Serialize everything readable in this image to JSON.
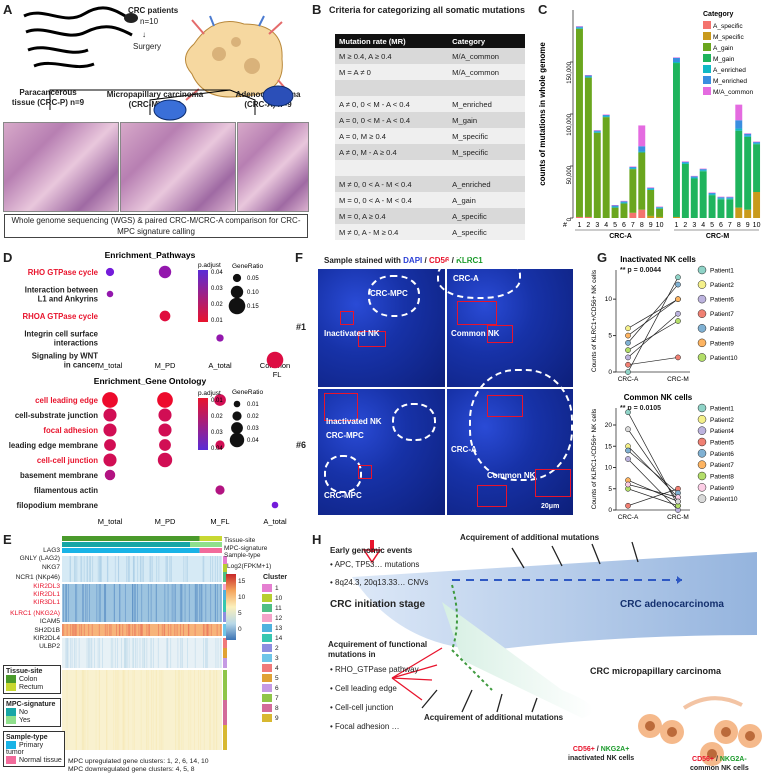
{
  "panels": {
    "A": "A",
    "B": "B",
    "C": "C",
    "D": "D",
    "E": "E",
    "F": "F",
    "G": "G",
    "H": "H"
  },
  "panelA": {
    "patients": "CRC patients",
    "n10": "n=10",
    "surgery": "Surgery",
    "crc_p": "Paracancerous tissue (CRC-P) n=9",
    "crc_m": "Micropapillary carcinoma (CRC-M) n=10",
    "crc_a": "Adenocarcinoma (CRC-A) n=9",
    "wgs": "Whole genome sequencing (WGS) & paired CRC-M/CRC-A comparison for CRC-MPC signature calling"
  },
  "panelB": {
    "title": "Criteria for categorizing all somatic mutations",
    "headers": [
      "Mutation rate (MR)",
      "Category"
    ],
    "rows": [
      [
        "M ≥ 0.4, A ≥ 0.4",
        "M/A_common"
      ],
      [
        "M = A ≠ 0",
        "M/A_common"
      ],
      [
        "",
        ""
      ],
      [
        "A ≠ 0, 0 < M - A < 0.4",
        "M_enriched"
      ],
      [
        "A = 0, 0 < M - A < 0.4",
        "M_gain"
      ],
      [
        "A = 0, M ≥ 0.4",
        "M_specific"
      ],
      [
        "A ≠ 0, M - A ≥ 0.4",
        "M_specific"
      ],
      [
        "",
        ""
      ],
      [
        "M ≠ 0, 0 < A - M < 0.4",
        "A_enriched"
      ],
      [
        "M = 0, 0 < A - M < 0.4",
        "A_gain"
      ],
      [
        "M = 0, A ≥ 0.4",
        "A_specific"
      ],
      [
        "M ≠ 0, A - M ≥ 0.4",
        "A_specific"
      ]
    ]
  },
  "chart_data": [
    {
      "type": "bar",
      "title": "",
      "ylabel": "counts of mutations in whole genome",
      "xlabel_groups": [
        "CRC-A",
        "CRC-M"
      ],
      "x_tick_prefix": "#",
      "categories": [
        "1",
        "2",
        "3",
        "4",
        "5",
        "6",
        "7",
        "8",
        "9",
        "10",
        "1",
        "2",
        "3",
        "4",
        "5",
        "6",
        "7",
        "8",
        "9",
        "10"
      ],
      "ylim": [
        0,
        200000
      ],
      "yticks": [
        "0",
        "50,000",
        "100,000",
        "150,000"
      ],
      "legend_title": "Category",
      "legend_position": "top-right",
      "colors": {
        "A_specific": "#f4736e",
        "M_specific": "#c99a1c",
        "A_gain": "#6aa61e",
        "M_gain": "#1fb45d",
        "A_enriched": "#11b9c5",
        "M_enriched": "#3a8ee0",
        "M/A_common": "#e46be0"
      },
      "series": [
        {
          "name": "A_specific",
          "values": [
            1000,
            1000,
            0,
            0,
            0,
            0,
            5000,
            8000,
            0,
            0,
            0,
            0,
            0,
            0,
            0,
            0,
            0,
            0,
            0,
            0
          ]
        },
        {
          "name": "M_specific",
          "values": [
            0,
            0,
            0,
            0,
            0,
            0,
            0,
            0,
            2000,
            1000,
            1000,
            0,
            0,
            0,
            0,
            0,
            0,
            10000,
            8000,
            25000
          ]
        },
        {
          "name": "A_gain",
          "values": [
            181000,
            134000,
            82000,
            97000,
            10000,
            14000,
            42000,
            55000,
            25000,
            8000,
            0,
            0,
            0,
            0,
            0,
            0,
            0,
            0,
            0,
            0
          ]
        },
        {
          "name": "M_gain",
          "values": [
            0,
            0,
            0,
            0,
            0,
            0,
            0,
            0,
            0,
            0,
            148000,
            52000,
            38000,
            45000,
            22000,
            18000,
            18000,
            74000,
            70000,
            46000
          ]
        },
        {
          "name": "A_enriched",
          "values": [
            1000,
            1000,
            1000,
            1000,
            1000,
            1000,
            1000,
            1000,
            1000,
            1000,
            1000,
            1000,
            1000,
            1000,
            1000,
            1000,
            1000,
            2000,
            1000,
            1000
          ]
        },
        {
          "name": "M_enriched",
          "values": [
            1000,
            1000,
            1000,
            1000,
            1000,
            1000,
            1000,
            5000,
            1000,
            500,
            4000,
            1000,
            1000,
            1000,
            1000,
            1000,
            1000,
            8000,
            2000,
            1000
          ]
        },
        {
          "name": "M/A_common",
          "values": [
            500,
            500,
            500,
            500,
            500,
            500,
            500,
            20000,
            500,
            500,
            500,
            500,
            500,
            500,
            500,
            500,
            500,
            15000,
            500,
            500
          ]
        }
      ]
    },
    {
      "type": "scatter",
      "title": "Enrichment_Pathways",
      "x": [
        "M_total",
        "M_PD",
        "A_total",
        "Common_FL"
      ],
      "categories": [
        "RHO GTPase cycle",
        "Interaction between L1 and Ankyrins",
        "RHOA GTPase cycle",
        "Integrin cell surface interactions",
        "Signaling by WNT in cancer"
      ],
      "legend_title": "p.adjust",
      "legend_ticks": [
        "0.04",
        "0.03",
        "0.02",
        "0.01"
      ],
      "size_title": "GeneRatio",
      "size_ticks": [
        "0.05",
        "0.10",
        "0.15"
      ],
      "points": [
        {
          "x": "M_total",
          "y": "RHO GTPase cycle",
          "padj": 0.04,
          "ratio": 0.05
        },
        {
          "x": "M_PD",
          "y": "RHO GTPase cycle",
          "padj": 0.03,
          "ratio": 0.1
        },
        {
          "x": "M_total",
          "y": "Interaction between L1 and Ankyrins",
          "padj": 0.03,
          "ratio": 0.03
        },
        {
          "x": "M_PD",
          "y": "RHOA GTPase cycle",
          "padj": 0.005,
          "ratio": 0.08
        },
        {
          "x": "A_total",
          "y": "Integrin cell surface interactions",
          "padj": 0.03,
          "ratio": 0.04
        },
        {
          "x": "Common_FL",
          "y": "Signaling by WNT in cancer",
          "padj": 0.006,
          "ratio": 0.15
        }
      ]
    },
    {
      "type": "scatter",
      "title": "Enrichment_Gene Ontology",
      "x": [
        "M_total",
        "M_PD",
        "M_FL",
        "A_total"
      ],
      "categories": [
        "cell leading edge",
        "cell-substrate junction",
        "focal adhesion",
        "leading edge membrane",
        "cell-cell junction",
        "basement membrane",
        "filamentous actin",
        "filopodium membrane"
      ],
      "legend_title": "p.adjust",
      "legend_ticks": [
        "0.01",
        "0.02",
        "0.03",
        "0.04"
      ],
      "size_title": "GeneRatio",
      "size_ticks": [
        "0.01",
        "0.02",
        "0.03",
        "0.04"
      ],
      "points": [
        {
          "x": "M_total",
          "y": "cell leading edge",
          "padj": 0.001,
          "ratio": 0.045
        },
        {
          "x": "M_PD",
          "y": "cell leading edge",
          "padj": 0.001,
          "ratio": 0.045
        },
        {
          "x": "M_FL",
          "y": "cell leading edge",
          "padj": 0.01,
          "ratio": 0.03
        },
        {
          "x": "M_total",
          "y": "cell-substrate junction",
          "padj": 0.01,
          "ratio": 0.035
        },
        {
          "x": "M_PD",
          "y": "cell-substrate junction",
          "padj": 0.01,
          "ratio": 0.035
        },
        {
          "x": "M_total",
          "y": "focal adhesion",
          "padj": 0.01,
          "ratio": 0.035
        },
        {
          "x": "M_PD",
          "y": "focal adhesion",
          "padj": 0.01,
          "ratio": 0.035
        },
        {
          "x": "M_total",
          "y": "leading edge membrane",
          "padj": 0.01,
          "ratio": 0.03
        },
        {
          "x": "M_PD",
          "y": "leading edge membrane",
          "padj": 0.01,
          "ratio": 0.03
        },
        {
          "x": "M_FL",
          "y": "leading edge membrane",
          "padj": 0.01,
          "ratio": 0.02
        },
        {
          "x": "M_total",
          "y": "cell-cell junction",
          "padj": 0.01,
          "ratio": 0.035
        },
        {
          "x": "M_PD",
          "y": "cell-cell junction",
          "padj": 0.01,
          "ratio": 0.04
        },
        {
          "x": "M_total",
          "y": "basement membrane",
          "padj": 0.02,
          "ratio": 0.025
        },
        {
          "x": "M_FL",
          "y": "filamentous actin",
          "padj": 0.02,
          "ratio": 0.02
        },
        {
          "x": "A_total",
          "y": "filopodium membrane",
          "padj": 0.04,
          "ratio": 0.01
        }
      ]
    },
    {
      "type": "line",
      "title": "Inactivated NK cells",
      "annotation": "** p = 0.0044",
      "ylabel": "Counts of KLRC1+/CD56+ NK cells",
      "x": [
        "CRC-A",
        "CRC-M"
      ],
      "yticks": [
        "0",
        "5",
        "10"
      ],
      "ylim": [
        0,
        14
      ],
      "series": [
        {
          "name": "Patient1",
          "color": "#8fd3c7",
          "values": [
            0,
            13
          ]
        },
        {
          "name": "Patient2",
          "color": "#f4f08a",
          "values": [
            6,
            10
          ]
        },
        {
          "name": "Patient6",
          "color": "#bcb3de",
          "values": [
            2,
            8
          ]
        },
        {
          "name": "Patient7",
          "color": "#f08073",
          "values": [
            1,
            2
          ]
        },
        {
          "name": "Patient8",
          "color": "#80b1d3",
          "values": [
            4,
            12
          ]
        },
        {
          "name": "Patient9",
          "color": "#fdb462",
          "values": [
            5,
            10
          ]
        },
        {
          "name": "Patient10",
          "color": "#b3de69",
          "values": [
            3,
            7
          ]
        }
      ]
    },
    {
      "type": "line",
      "title": "Common NK cells",
      "annotation": "** p = 0.0105",
      "ylabel": "Counts of KLRC1-/CD56+ NK cells",
      "x": [
        "CRC-A",
        "CRC-M"
      ],
      "yticks": [
        "0",
        "5",
        "10",
        "15",
        "20"
      ],
      "ylim": [
        0,
        24
      ],
      "series": [
        {
          "name": "Patient1",
          "color": "#8fd3c7",
          "values": [
            23,
            1
          ]
        },
        {
          "name": "Patient2",
          "color": "#f4f08a",
          "values": [
            15,
            3
          ]
        },
        {
          "name": "Patient4",
          "color": "#bcb3de",
          "values": [
            12,
            0
          ]
        },
        {
          "name": "Patient5",
          "color": "#f08073",
          "values": [
            1,
            5
          ]
        },
        {
          "name": "Patient6",
          "color": "#80b1d3",
          "values": [
            14,
            4
          ]
        },
        {
          "name": "Patient7",
          "color": "#fdb462",
          "values": [
            7,
            2
          ]
        },
        {
          "name": "Patient8",
          "color": "#b3de69",
          "values": [
            5,
            1
          ]
        },
        {
          "name": "Patient9",
          "color": "#fccde5",
          "values": [
            6,
            3
          ]
        },
        {
          "name": "Patient10",
          "color": "#d9d9d9",
          "values": [
            19,
            2
          ]
        }
      ]
    }
  ],
  "panelD": {
    "axis_x_pathways": [
      "M_total",
      "M_PD",
      "A_total",
      "Common_FL"
    ],
    "axis_x_go": [
      "M_total",
      "M_PD",
      "M_FL",
      "A_total"
    ]
  },
  "panelE": {
    "genes": [
      "LAG3",
      "GNLY (LAG2)",
      "NKG7",
      "NCR1 (NKp46)",
      "KIR2DL3",
      "KIR2DL1",
      "KIR3DL1",
      "KLRC1 (NKG2A)",
      "ICAM5",
      "SH2D1B",
      "KIR2DL4",
      "ULBP2"
    ],
    "red_genes": [
      "KIR2DL3",
      "KIR2DL1",
      "KIR3DL1",
      "KLRC1 (NKG2A)"
    ],
    "top_labels": [
      "Tissue-site",
      "MPC-signature",
      "Sample-type"
    ],
    "scale_title": "Log2(FPKM+1)",
    "scale_ticks": [
      "15",
      "10",
      "5",
      "0"
    ],
    "cluster_title": "Cluster",
    "clusters": [
      {
        "id": "1",
        "color": "#e57fd1"
      },
      {
        "id": "10",
        "color": "#b7ce2f"
      },
      {
        "id": "11",
        "color": "#4fbf85"
      },
      {
        "id": "12",
        "color": "#f4a3c9"
      },
      {
        "id": "13",
        "color": "#4fb2de"
      },
      {
        "id": "14",
        "color": "#37c7b0"
      },
      {
        "id": "2",
        "color": "#8d8ee0"
      },
      {
        "id": "3",
        "color": "#6ec5e8"
      },
      {
        "id": "4",
        "color": "#f07a7a"
      },
      {
        "id": "5",
        "color": "#e0a234"
      },
      {
        "id": "6",
        "color": "#c59ae4"
      },
      {
        "id": "7",
        "color": "#8fc548"
      },
      {
        "id": "8",
        "color": "#d36b9a"
      },
      {
        "id": "9",
        "color": "#d8b830"
      }
    ],
    "legend": {
      "tissue_title": "Tissue-site",
      "tissue_items": [
        "Colon",
        "Rectum"
      ],
      "tissue_colors": [
        "#4a9a2b",
        "#c8d832"
      ],
      "mpc_title": "MPC-signature",
      "mpc_items": [
        "No",
        "Yes"
      ],
      "mpc_colors": [
        "#17a6a6",
        "#8fe08c"
      ],
      "sample_title": "Sample-type",
      "sample_items": [
        "Primary tumor",
        "Normal tissue"
      ],
      "sample_colors": [
        "#19b3e6",
        "#f26b9b"
      ]
    },
    "foot1": "MPC upregulated gene clusters: 1, 2, 6, 14, 10",
    "foot2": "MPC downregulated gene clusters: 4, 5, 8"
  },
  "panelF": {
    "title_prefix": "Sample stained with",
    "dapi": "DAPI",
    "sep": " / ",
    "cd56": "CD56",
    "klrc1": "KLRC1",
    "row1": "#1",
    "row6": "#6",
    "crc_mpc": "CRC-MPC",
    "crc_a": "CRC-A",
    "inact": "Inactivated NK",
    "common": "Common NK",
    "scale": "20μm"
  },
  "panelG": {
    "top_title": "Inactivated NK cells",
    "bottom_title": "Common NK cells"
  },
  "panelH": {
    "early": "Early genomic events",
    "b1": "APC, TP53… mutations",
    "b2": "8q24.3, 20q13.33… CNVs",
    "acq_top": "Acquirement of additional mutations",
    "init": "CRC initiation stage",
    "adeno": "CRC adenocarcinoma",
    "func_title": "Acquirement of functional mutations in",
    "f1": "RHO_GTPase pathway",
    "f2": "Cell leading edge",
    "f3": "Cell-cell junction",
    "f4": "Focal adhesion …",
    "acq_bottom": "Acquirement of additional mutations",
    "mpc": "CRC micropapillary carcinoma",
    "nk1a": "CD56+",
    "nk1b": " / ",
    "nk1c": "NKG2A+",
    "nk1d": "inactivated NK cells",
    "nk2a": "CD56+",
    "nk2b": " / ",
    "nk2c": "NKG2A-",
    "nk2d": "common NK cells"
  }
}
